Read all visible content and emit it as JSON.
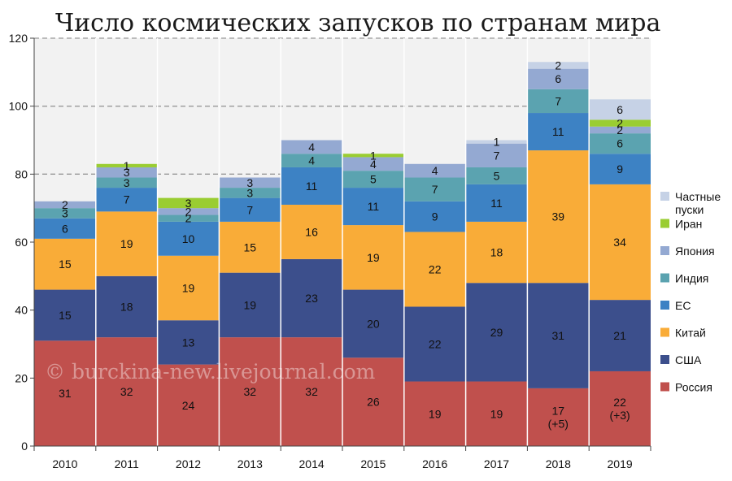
{
  "watermark": "© burckina-new.livejournal.com",
  "chart_data": {
    "type": "bar",
    "stacked": true,
    "title": "Число космических запусков по странам мира",
    "xlabel": "",
    "ylabel": "",
    "ylim": [
      0,
      120
    ],
    "yticks": [
      0,
      20,
      40,
      60,
      80,
      100,
      120
    ],
    "grid": "horizontal dashed at 80, 100, 120",
    "legend_position": "right",
    "categories": [
      "2010",
      "2011",
      "2012",
      "2013",
      "2014",
      "2015",
      "2016",
      "2017",
      "2018",
      "2019"
    ],
    "series": [
      {
        "name": "Россия",
        "color": "#c0504d",
        "values": [
          31,
          32,
          24,
          32,
          32,
          26,
          19,
          19,
          17,
          22
        ],
        "labels": [
          "31",
          "32",
          "24",
          "32",
          "32",
          "26",
          "19",
          "19",
          "17\n(+5)",
          "22\n(+3)"
        ]
      },
      {
        "name": "США",
        "color": "#3c4f8c",
        "values": [
          15,
          18,
          13,
          19,
          23,
          20,
          22,
          29,
          31,
          21
        ],
        "labels": [
          "15",
          "18",
          "13",
          "19",
          "23",
          "20",
          "22",
          "29",
          "31",
          "21"
        ]
      },
      {
        "name": "Китай",
        "color": "#f9ac38",
        "values": [
          15,
          19,
          19,
          15,
          16,
          19,
          22,
          18,
          39,
          34
        ],
        "labels": [
          "15",
          "19",
          "19",
          "15",
          "16",
          "19",
          "22",
          "18",
          "39",
          "34"
        ]
      },
      {
        "name": "ЕС",
        "color": "#3d82c4",
        "values": [
          6,
          7,
          10,
          7,
          11,
          11,
          9,
          11,
          11,
          9
        ],
        "labels": [
          "6",
          "7",
          "10",
          "7",
          "11",
          "11",
          "9",
          "11",
          "11",
          "9"
        ]
      },
      {
        "name": "Индия",
        "color": "#5ba3b0",
        "values": [
          3,
          3,
          2,
          3,
          4,
          5,
          7,
          5,
          7,
          6
        ],
        "labels": [
          "3",
          "3",
          "2",
          "3",
          "4",
          "5",
          "7",
          "5",
          "7",
          "6"
        ]
      },
      {
        "name": "Япония",
        "color": "#94a9d2",
        "values": [
          2,
          3,
          2,
          3,
          4,
          4,
          4,
          7,
          6,
          2
        ],
        "labels": [
          "2",
          "3",
          "2",
          "3",
          "4",
          "4",
          "4",
          "7",
          "6",
          "2"
        ]
      },
      {
        "name": "Иран",
        "color": "#9acd32",
        "values": [
          0,
          1,
          3,
          0,
          0,
          1,
          0,
          0,
          0,
          2
        ],
        "labels": [
          "",
          "1",
          "3",
          "",
          "",
          "1",
          "",
          "",
          "",
          "2"
        ]
      },
      {
        "name": "Частные\nпуски",
        "color": "#c6d2e6",
        "values": [
          0,
          0,
          0,
          0,
          0,
          0,
          0,
          1,
          2,
          6
        ],
        "labels": [
          "",
          "",
          "",
          "",
          "",
          "",
          "",
          "1",
          "2",
          "6"
        ]
      }
    ]
  }
}
